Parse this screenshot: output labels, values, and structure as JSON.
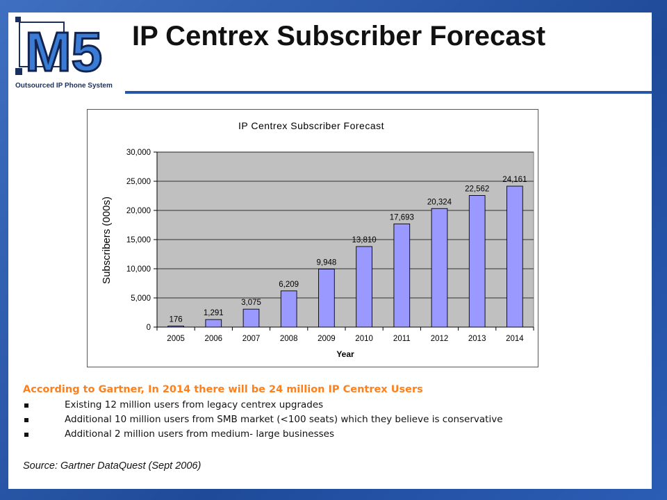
{
  "slide": {
    "title": "IP Centrex Subscriber Forecast",
    "logo": {
      "text": "M5",
      "caption": "Outsourced IP Phone System"
    },
    "headline": "According to Gartner, In 2014 there will be 24 million IP Centrex Users",
    "bullets": [
      "Existing 12 million users from legacy centrex upgrades",
      "Additional 10 million users from SMB market (<100 seats) which they believe is conservative",
      "Additional 2 million users from medium- large businesses"
    ],
    "source": "Source: Gartner DataQuest (Sept 2006)",
    "colors": {
      "frame": "#2e5aa8",
      "accent": "#ff7f1a",
      "bar": "#9999ff",
      "plot_bg": "#c0c0c0"
    }
  },
  "chart_data": {
    "type": "bar",
    "title": "IP Centrex Subscriber Forecast",
    "xlabel": "Year",
    "ylabel": "Subscribers (000s)",
    "categories": [
      "2005",
      "2006",
      "2007",
      "2008",
      "2009",
      "2010",
      "2011",
      "2012",
      "2013",
      "2014"
    ],
    "values": [
      176,
      1291,
      3075,
      6209,
      9948,
      13810,
      17693,
      20324,
      22562,
      24161
    ],
    "data_labels": [
      "176",
      "1,291",
      "3,075",
      "6,209",
      "9,948",
      "13,810",
      "17,693",
      "20,324",
      "22,562",
      "24,161"
    ],
    "ylim": [
      0,
      30000
    ],
    "yticks": [
      "0",
      "5,000",
      "10,000",
      "15,000",
      "20,000",
      "25,000",
      "30,000"
    ],
    "grid": true,
    "legend": "none"
  }
}
